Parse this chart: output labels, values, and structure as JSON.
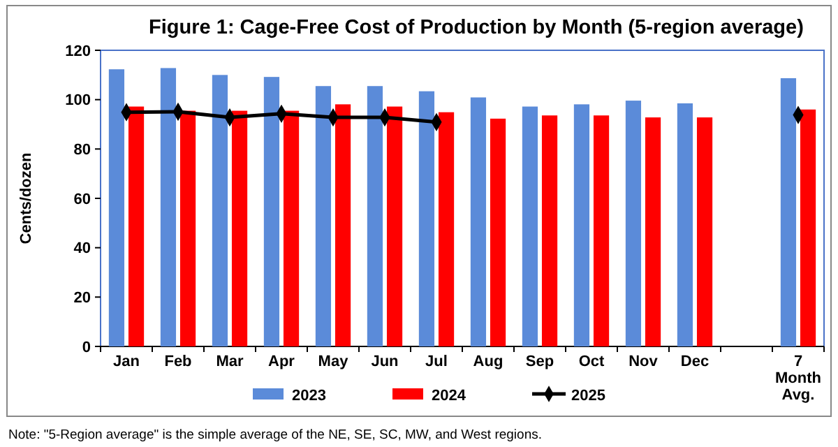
{
  "chart_data": {
    "type": "bar",
    "title": "Figure 1: Cage-Free Cost of Production by Month (5-region average)",
    "ylabel": "Cents/dozen",
    "categories": [
      "Jan",
      "Feb",
      "Mar",
      "Apr",
      "May",
      "Jun",
      "Jul",
      "Aug",
      "Sep",
      "Oct",
      "Nov",
      "Dec",
      null,
      "7 Month Avg."
    ],
    "series": [
      {
        "name": "2023",
        "color": "#5b8bd9",
        "values": [
          112.3,
          112.8,
          110,
          109.2,
          105.5,
          105.5,
          103.4,
          100.9,
          97.2,
          98.1,
          99.6,
          98.5,
          null,
          108.7
        ]
      },
      {
        "name": "2024",
        "color": "#ff0000",
        "values": [
          97.2,
          95.5,
          95.5,
          95.5,
          98.1,
          97.2,
          94.9,
          92.3,
          93.6,
          93.6,
          92.8,
          92.8,
          null,
          96
        ]
      },
      {
        "name": "2025",
        "type": "line",
        "color": "#000000",
        "marker": "diamond",
        "values": [
          94.9,
          95.1,
          92.8,
          94.3,
          92.8,
          92.8,
          90.9,
          null,
          null,
          null,
          null,
          null,
          null,
          93.8
        ]
      }
    ],
    "ylim": [
      0,
      120
    ],
    "yticks": [
      0,
      20,
      40,
      60,
      80,
      100,
      120
    ],
    "legend": "bottom",
    "annotations": [
      "Note: \"5-Region average\" is the simple average of the NE, SE, SC, MW, and West regions."
    ]
  }
}
